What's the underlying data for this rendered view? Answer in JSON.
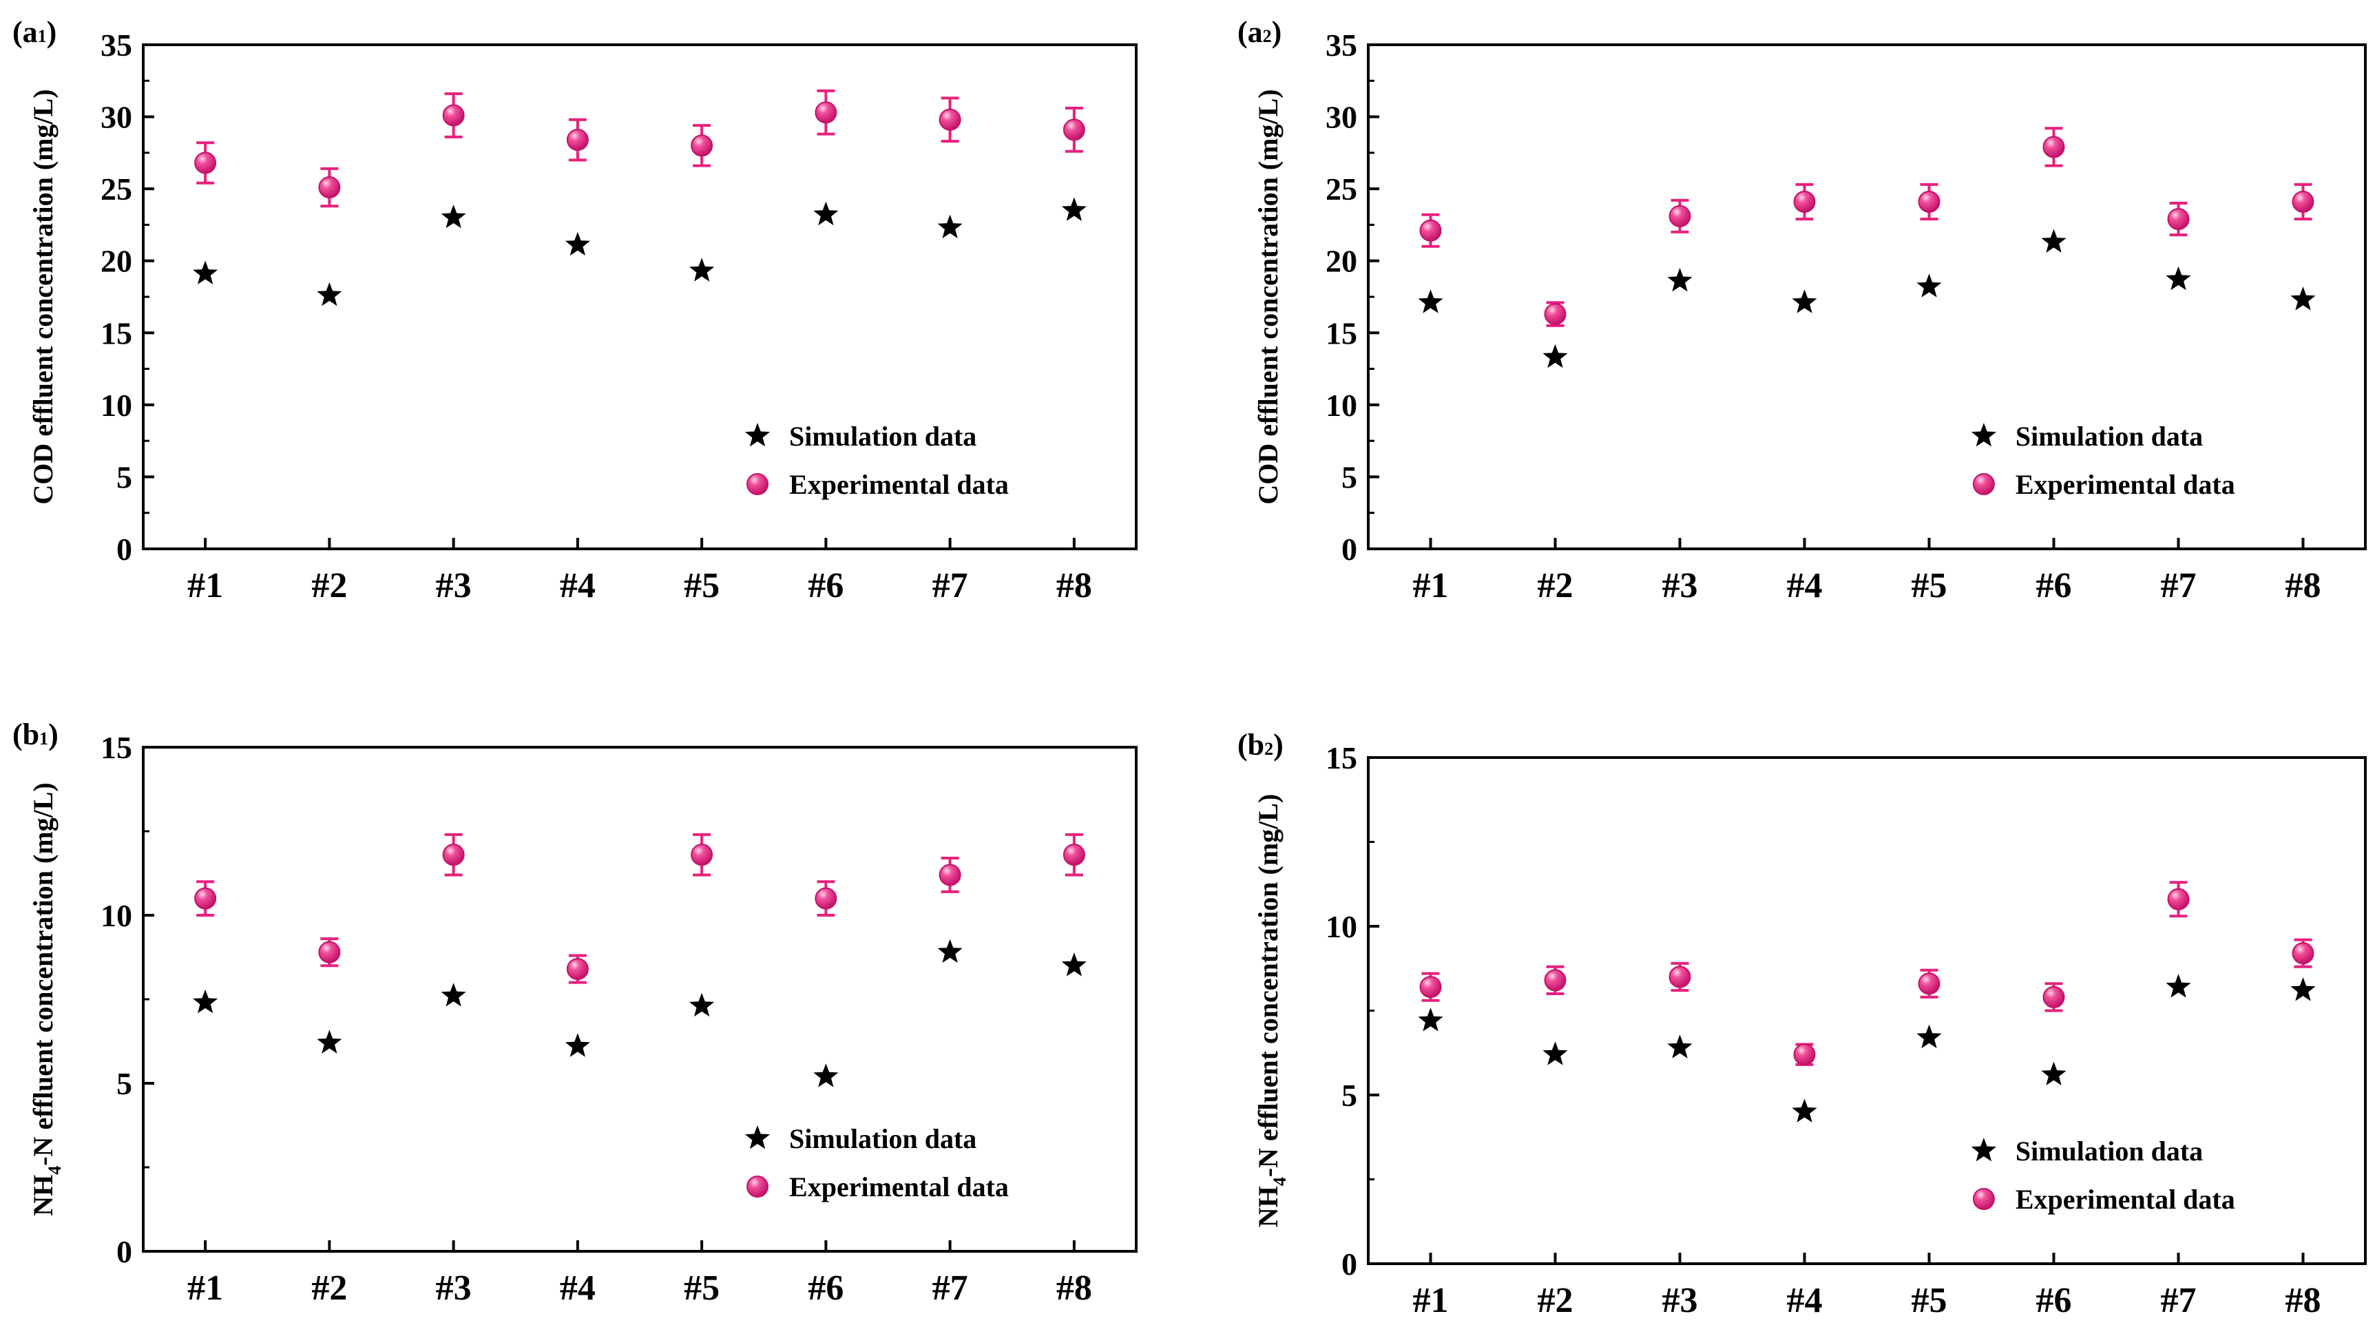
{
  "chart_data": [
    {
      "id": "a1",
      "type": "scatter",
      "panel_label": "(a1)",
      "ylabel": "COD effluent concentration (mg/L)",
      "ylabel_prefix": "",
      "ylabel_sub": "",
      "ylabel_rest": "COD effluent concentration (mg/L)",
      "categories": [
        "#1",
        "#2",
        "#3",
        "#4",
        "#5",
        "#6",
        "#7",
        "#8"
      ],
      "ylim": [
        0,
        35
      ],
      "yticks": [
        0,
        5,
        10,
        15,
        20,
        25,
        30,
        35
      ],
      "legend_position": "bottom-right",
      "series": [
        {
          "name": "Simulation data",
          "marker": "star",
          "color": "#000000",
          "values": [
            19.1,
            17.6,
            23.0,
            21.1,
            19.3,
            23.2,
            22.3,
            23.5
          ]
        },
        {
          "name": "Experimental data",
          "marker": "circle",
          "color": "#e8207e",
          "values": [
            26.8,
            25.1,
            30.1,
            28.4,
            28.0,
            30.3,
            29.8,
            29.1
          ],
          "errors": [
            1.4,
            1.3,
            1.5,
            1.4,
            1.4,
            1.5,
            1.5,
            1.5
          ]
        }
      ]
    },
    {
      "id": "a2",
      "type": "scatter",
      "panel_label": "(a2)",
      "ylabel": "COD effluent concentration (mg/L)",
      "ylabel_prefix": "",
      "ylabel_sub": "",
      "ylabel_rest": "COD effluent concentration (mg/L)",
      "categories": [
        "#1",
        "#2",
        "#3",
        "#4",
        "#5",
        "#6",
        "#7",
        "#8"
      ],
      "ylim": [
        0,
        35
      ],
      "yticks": [
        0,
        5,
        10,
        15,
        20,
        25,
        30,
        35
      ],
      "legend_position": "bottom-right",
      "series": [
        {
          "name": "Simulation data",
          "marker": "star",
          "color": "#000000",
          "values": [
            17.1,
            13.3,
            18.6,
            17.1,
            18.2,
            21.3,
            18.7,
            17.3
          ]
        },
        {
          "name": "Experimental data",
          "marker": "circle",
          "color": "#e8207e",
          "values": [
            22.1,
            16.3,
            23.1,
            24.1,
            24.1,
            27.9,
            22.9,
            24.1
          ],
          "errors": [
            1.1,
            0.8,
            1.1,
            1.2,
            1.2,
            1.3,
            1.1,
            1.2
          ]
        }
      ]
    },
    {
      "id": "b1",
      "type": "scatter",
      "panel_label": "(b1)",
      "ylabel": "NH4-N effluent concentration (mg/L)",
      "ylabel_prefix": "NH",
      "ylabel_sub": "4",
      "ylabel_rest": "-N effluent concentration (mg/L)",
      "categories": [
        "#1",
        "#2",
        "#3",
        "#4",
        "#5",
        "#6",
        "#7",
        "#8"
      ],
      "ylim": [
        0,
        15
      ],
      "yticks": [
        0,
        5,
        10,
        15
      ],
      "legend_position": "bottom-right",
      "series": [
        {
          "name": "Simulation data",
          "marker": "star",
          "color": "#000000",
          "values": [
            7.4,
            6.2,
            7.6,
            6.1,
            7.3,
            5.2,
            8.9,
            8.5
          ]
        },
        {
          "name": "Experimental data",
          "marker": "circle",
          "color": "#e8207e",
          "values": [
            10.5,
            8.9,
            11.8,
            8.4,
            11.8,
            10.5,
            11.2,
            11.8
          ],
          "errors": [
            0.5,
            0.4,
            0.6,
            0.4,
            0.6,
            0.5,
            0.5,
            0.6
          ]
        }
      ]
    },
    {
      "id": "b2",
      "type": "scatter",
      "panel_label": "(b2)",
      "ylabel": "NH4-N effluent concentration (mg/L)",
      "ylabel_prefix": "NH",
      "ylabel_sub": "4",
      "ylabel_rest": "-N effluent concentration (mg/L)",
      "categories": [
        "#1",
        "#2",
        "#3",
        "#4",
        "#5",
        "#6",
        "#7",
        "#8"
      ],
      "ylim": [
        0,
        15
      ],
      "yticks": [
        0,
        5,
        10,
        15
      ],
      "legend_position": "bottom-right",
      "series": [
        {
          "name": "Simulation data",
          "marker": "star",
          "color": "#000000",
          "values": [
            7.2,
            6.2,
            6.4,
            4.5,
            6.7,
            5.6,
            8.2,
            8.1
          ]
        },
        {
          "name": "Experimental data",
          "marker": "circle",
          "color": "#e8207e",
          "values": [
            8.2,
            8.4,
            8.5,
            6.2,
            8.3,
            7.9,
            10.8,
            9.2
          ],
          "errors": [
            0.4,
            0.4,
            0.4,
            0.3,
            0.4,
            0.4,
            0.5,
            0.4
          ]
        }
      ]
    }
  ]
}
